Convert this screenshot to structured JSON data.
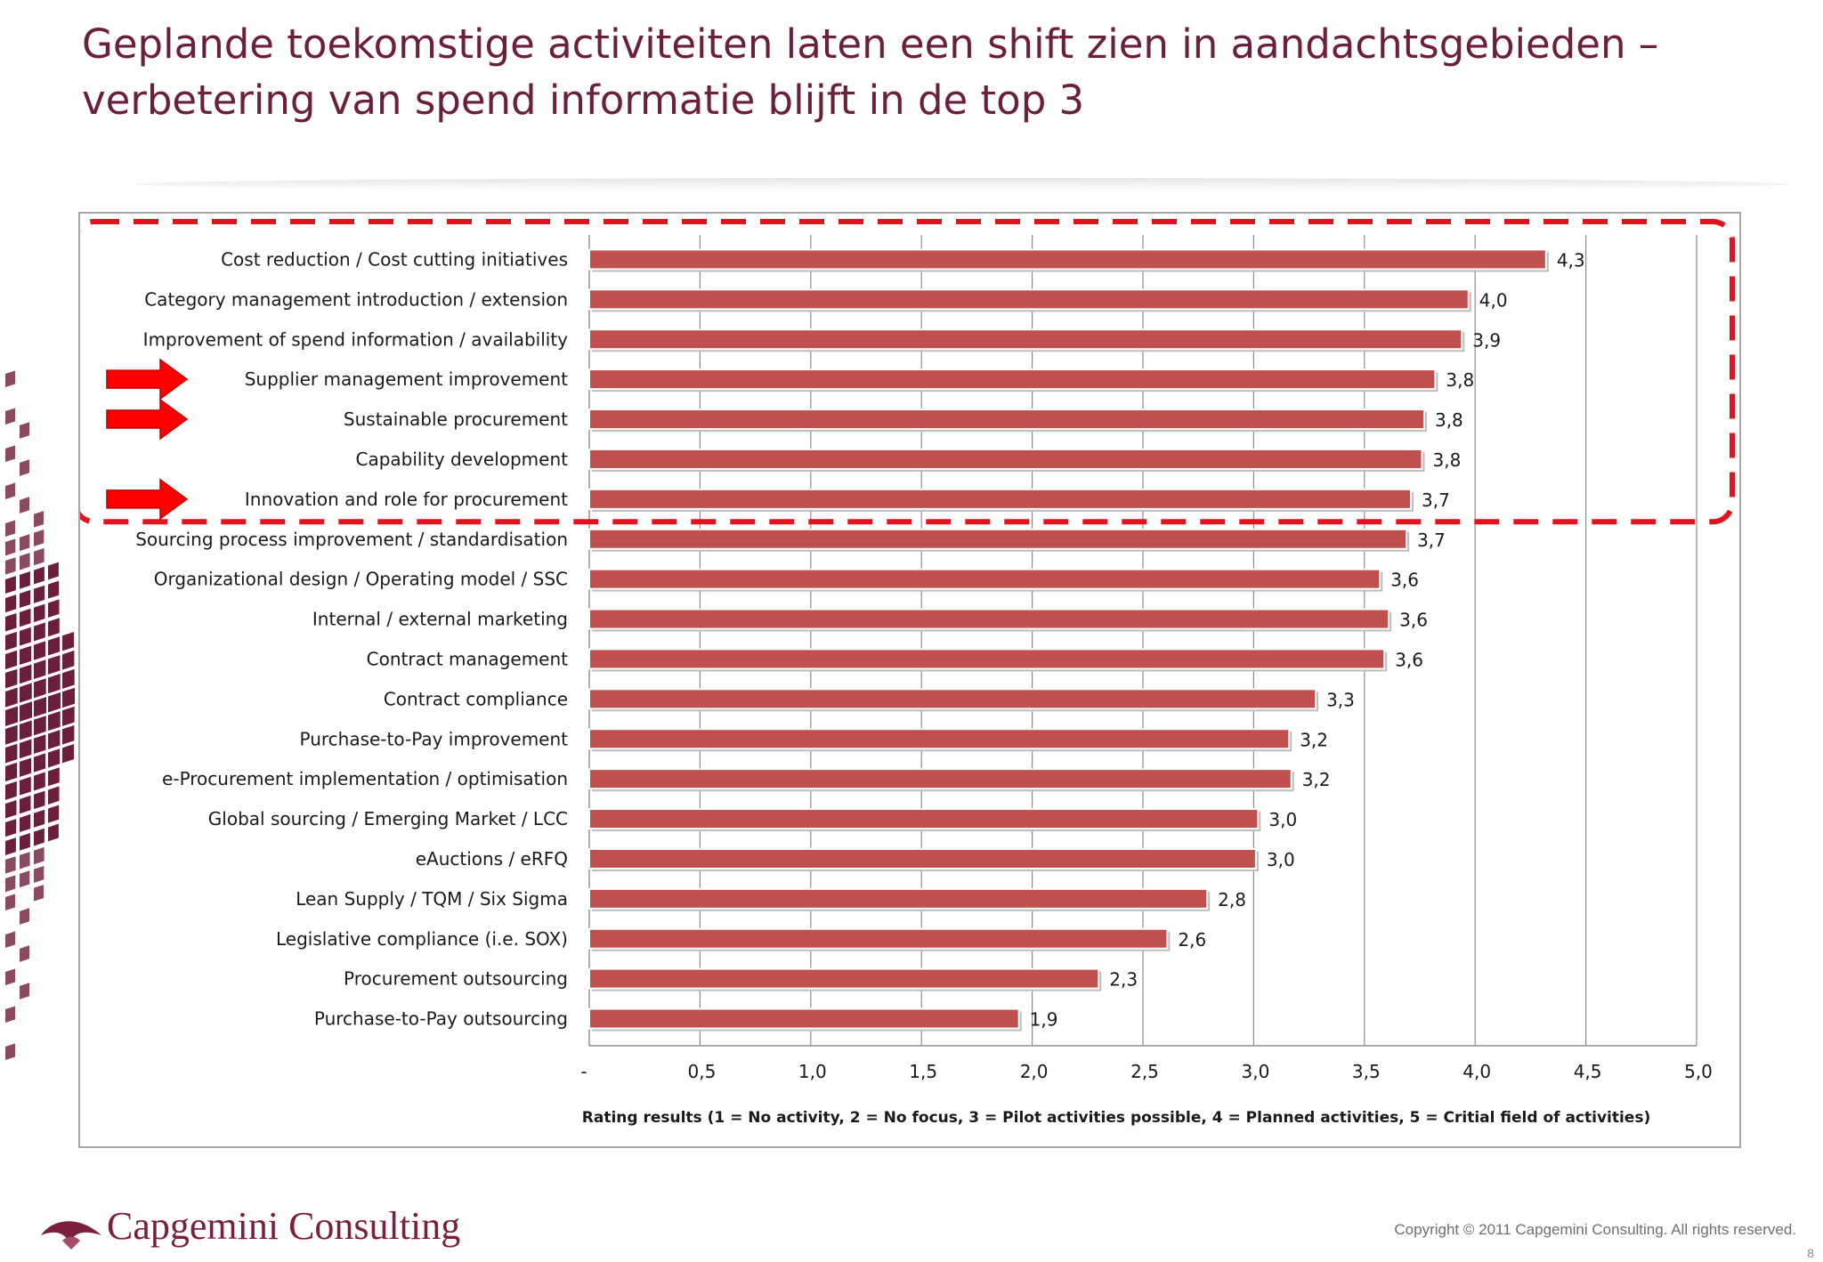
{
  "slide": {
    "title": "Geplande toekomstige activiteiten laten een shift zien in aandachtsgebieden – verbetering van spend informatie blijft in de top 3",
    "copyright": "Copyright © 2011 Capgemini Consulting. All rights reserved.",
    "page_number": "8",
    "logo_text": "Capgemini Consulting"
  },
  "colors": {
    "title": "#6b1f3d",
    "bar": "#c0504d",
    "highlight": "#e0141e",
    "logo": "#7a1f3d"
  },
  "chart_data": {
    "type": "bar",
    "orientation": "horizontal",
    "categories": [
      "Cost reduction / Cost cutting initiatives",
      "Category management introduction / extension",
      "Improvement of spend information / availability",
      "Supplier management improvement",
      "Sustainable procurement",
      "Capability development",
      "Innovation and role for procurement",
      "Sourcing process improvement / standardisation",
      "Organizational design / Operating model / SSC",
      "Internal / external marketing",
      "Contract management",
      "Contract compliance",
      "Purchase-to-Pay improvement",
      "e-Procurement implementation / optimisation",
      "Global sourcing / Emerging Market / LCC",
      "eAuctions / eRFQ",
      "Lean Supply / TQM / Six Sigma",
      "Legislative compliance (i.e. SOX)",
      "Procurement outsourcing",
      "Purchase-to-Pay outsourcing"
    ],
    "values": [
      4.32,
      3.97,
      3.94,
      3.82,
      3.77,
      3.76,
      3.71,
      3.69,
      3.57,
      3.61,
      3.59,
      3.28,
      3.16,
      3.17,
      3.02,
      3.01,
      2.79,
      2.61,
      2.3,
      1.94
    ],
    "value_labels": [
      "4,3",
      "4,0",
      "3,9",
      "3,8",
      "3,8",
      "3,8",
      "3,7",
      "3,7",
      "3,6",
      "3,6",
      "3,6",
      "3,3",
      "3,2",
      "3,2",
      "3,0",
      "3,0",
      "2,8",
      "2,6",
      "2,3",
      "1,9"
    ],
    "xlim": [
      0,
      5
    ],
    "x_ticks": [
      0,
      0.5,
      1.0,
      1.5,
      2.0,
      2.5,
      3.0,
      3.5,
      4.0,
      4.5,
      5.0
    ],
    "x_tick_labels": [
      "-",
      "0,5",
      "1,0",
      "1,5",
      "2,0",
      "2,5",
      "3,0",
      "3,5",
      "4,0",
      "4,5",
      "5,0"
    ],
    "xlabel": "Rating results (1 = No activity, 2 = No focus,  3 = Pilot activities possible, 4 = Planned activities, 5 = Critial field of activities)",
    "ylabel": "",
    "grid": "vertical",
    "highlighted_range": [
      0,
      6
    ],
    "arrow_marked_categories": [
      3,
      4,
      6
    ]
  }
}
